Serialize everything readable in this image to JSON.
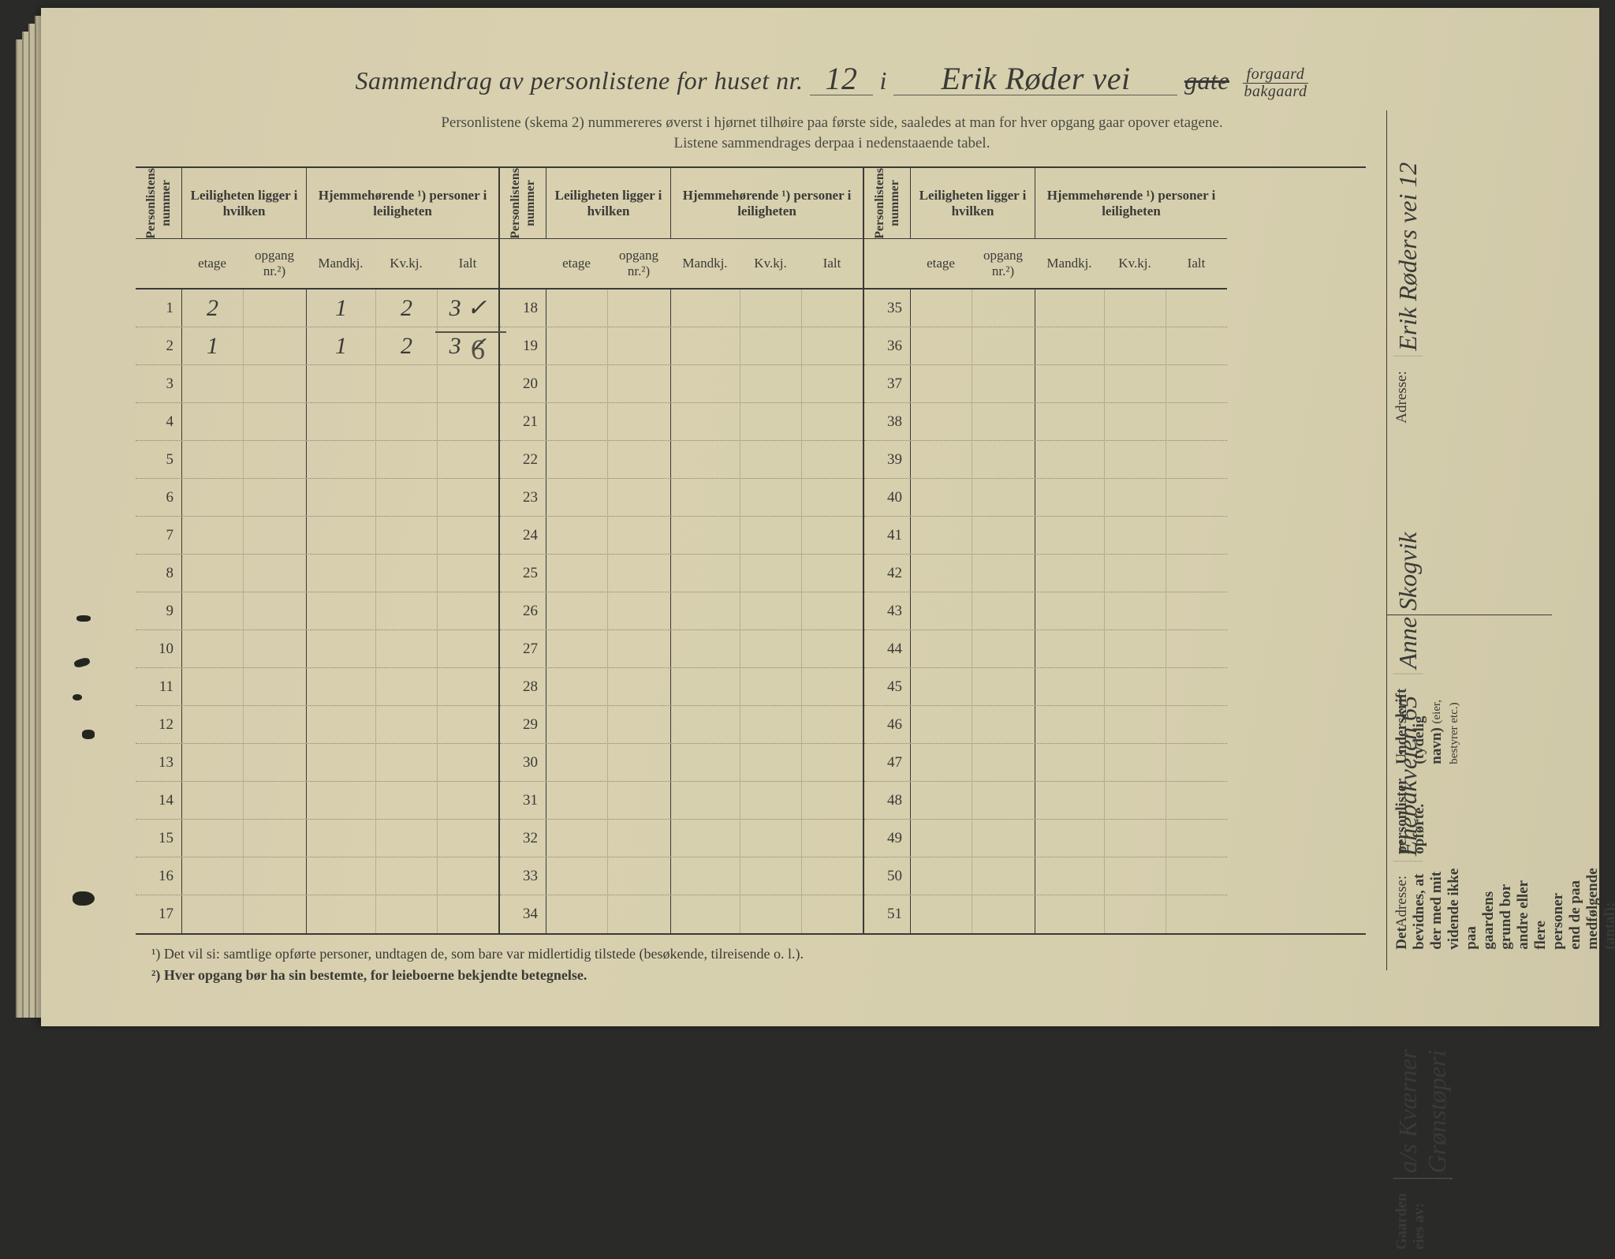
{
  "title": {
    "prefix": "Sammendrag av personlistene for huset nr.",
    "house_nr": "12",
    "mid": "i",
    "street": "Erik Røder vei",
    "gate_struck": "gate",
    "forgaard": "forgaard",
    "bakgaard": "bakgaard"
  },
  "subtitle1": "Personlistene (skema 2) nummereres øverst i hjørnet tilhøire paa første side, saaledes at man for hver opgang gaar opover etagene.",
  "subtitle2": "Listene sammendrages derpaa i nedenstaaende tabel.",
  "headers": {
    "personlistens_nummer": "Personlistens nummer",
    "leiligheten": "Leiligheten ligger i hvilken",
    "hjemmehorende": "Hjemmehørende ¹) personer i leiligheten",
    "etage": "etage",
    "opgang": "opgang nr.²)",
    "mandkj": "Mandkj.",
    "kvkj": "Kv.kj.",
    "ialt": "Ialt"
  },
  "blocks": [
    {
      "start": 1,
      "end": 17
    },
    {
      "start": 18,
      "end": 34
    },
    {
      "start": 35,
      "end": 51
    }
  ],
  "entries": {
    "1": {
      "etage": "2",
      "opgang": "",
      "m": "1",
      "k": "2",
      "i": "3 ✓"
    },
    "2": {
      "etage": "1",
      "opgang": "",
      "m": "1",
      "k": "2",
      "i": "3 ✓"
    }
  },
  "sum_below": "6",
  "footnotes": {
    "f1": "¹)  Det vil si: samtlige opførte personer, undtagen de, som bare var midlertidig tilstede (besøkende, tilreisende o. l.).",
    "f2": "²)  Hver opgang bør ha sin bestemte, for leieboerne bekjendte betegnelse."
  },
  "side": {
    "bevidnes": "Det bevidnes, at der med mit vidende ikke paa gaardens grund bor andre eller flere personer end de paa medfølgende (antal):",
    "personlister": "personlister opførte.",
    "underskrift_label": "Underskrift (tydelig navn)",
    "eier_bestyrer": "(eier, bestyrer etc.)",
    "underskrift_value": "Anne Skogvik",
    "adresse_label_1": "Adresse:",
    "adresse_value_1": "Erik Røders vei 12",
    "gaarden_eies": "Gaarden eies av:",
    "owner_value": "a/s Kværner Grønstøperi",
    "adresse_label_2": "Adresse:",
    "adresse_value_2": "Enebakveien 65"
  },
  "colors": {
    "paper": "#d6cfae",
    "ink": "#3a3a36",
    "faint": "#8a8370"
  }
}
